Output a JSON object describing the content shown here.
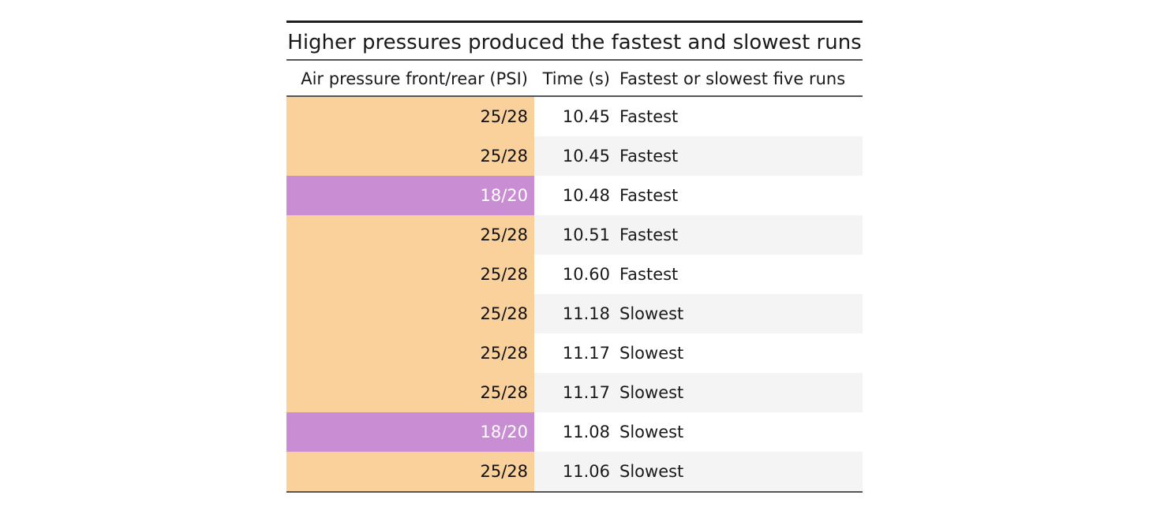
{
  "table": {
    "title": "Higher pressures produced the fastest and slowest runs",
    "columns": [
      "Air pressure front/rear (PSI)",
      "Time (s)",
      "Fastest or slowest five runs"
    ],
    "colors": {
      "25/28": "#fad19b",
      "18/20": "#c88dd2",
      "stripe": "#f4f4f4"
    },
    "rows": [
      {
        "pressure": "25/28",
        "time": "10.45",
        "rank": "Fastest"
      },
      {
        "pressure": "25/28",
        "time": "10.45",
        "rank": "Fastest"
      },
      {
        "pressure": "18/20",
        "time": "10.48",
        "rank": "Fastest"
      },
      {
        "pressure": "25/28",
        "time": "10.51",
        "rank": "Fastest"
      },
      {
        "pressure": "25/28",
        "time": "10.60",
        "rank": "Fastest"
      },
      {
        "pressure": "25/28",
        "time": "11.18",
        "rank": "Slowest"
      },
      {
        "pressure": "25/28",
        "time": "11.17",
        "rank": "Slowest"
      },
      {
        "pressure": "25/28",
        "time": "11.17",
        "rank": "Slowest"
      },
      {
        "pressure": "18/20",
        "time": "11.08",
        "rank": "Slowest"
      },
      {
        "pressure": "25/28",
        "time": "11.06",
        "rank": "Slowest"
      }
    ]
  }
}
